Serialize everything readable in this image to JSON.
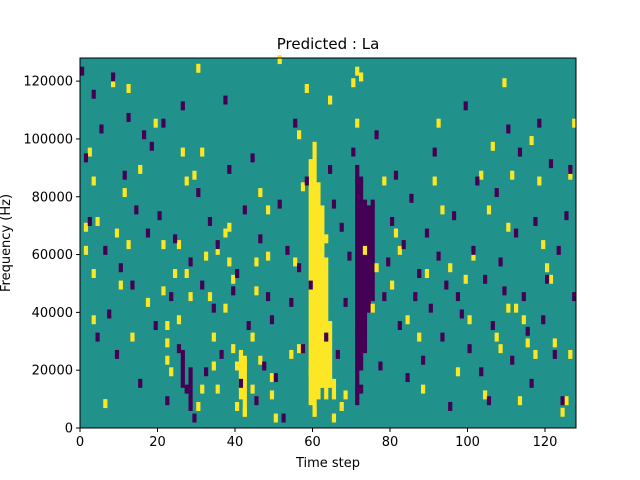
{
  "chart_data": {
    "type": "heatmap",
    "title": "Predicted : La",
    "xlabel": "Time step",
    "ylabel": "Frequency (Hz)",
    "xlim": [
      0,
      128
    ],
    "ylim": [
      0,
      128000
    ],
    "xticks": [
      0,
      20,
      40,
      60,
      80,
      100,
      120
    ],
    "yticks": [
      0,
      20000,
      40000,
      60000,
      80000,
      100000,
      120000
    ],
    "ytick_labels": [
      "0",
      "20000",
      "40000",
      "60000",
      "80000",
      "100000",
      "120000"
    ],
    "n_time_steps": 128,
    "n_freq_bins": 128,
    "bin_hz": 1000,
    "colors": {
      "background": "#21918c",
      "high": "#fde725",
      "low": "#440154"
    },
    "cells": {
      "high": [
        [
          1,
          60
        ],
        [
          1,
          68
        ],
        [
          2,
          94
        ],
        [
          3,
          84
        ],
        [
          3,
          52
        ],
        [
          3,
          36
        ],
        [
          4,
          70
        ],
        [
          6,
          7
        ],
        [
          8,
          118
        ],
        [
          9,
          66
        ],
        [
          10,
          48
        ],
        [
          11,
          80
        ],
        [
          12,
          116
        ],
        [
          12,
          62
        ],
        [
          13,
          30
        ],
        [
          15,
          88
        ],
        [
          17,
          42
        ],
        [
          19,
          104
        ],
        [
          21,
          62
        ],
        [
          21,
          46
        ],
        [
          22,
          34
        ],
        [
          22,
          28
        ],
        [
          22,
          22
        ],
        [
          23,
          18
        ],
        [
          24,
          52
        ],
        [
          25,
          62
        ],
        [
          25,
          36
        ],
        [
          26,
          94
        ],
        [
          27,
          52
        ],
        [
          27,
          84
        ],
        [
          28,
          44
        ],
        [
          29,
          86
        ],
        [
          30,
          6
        ],
        [
          30,
          123
        ],
        [
          31,
          12
        ],
        [
          31,
          94
        ],
        [
          32,
          58
        ],
        [
          33,
          44
        ],
        [
          34,
          20
        ],
        [
          34,
          30
        ],
        [
          35,
          12
        ],
        [
          35,
          60
        ],
        [
          37,
          40
        ],
        [
          37,
          66
        ],
        [
          38,
          56
        ],
        [
          38,
          68
        ],
        [
          39,
          26
        ],
        [
          39,
          50
        ],
        [
          40,
          6
        ],
        [
          40,
          20
        ],
        [
          41,
          18
        ],
        [
          41,
          24
        ],
        [
          42,
          4
        ],
        [
          42,
          20
        ],
        [
          44,
          30
        ],
        [
          44,
          12
        ],
        [
          45,
          46
        ],
        [
          45,
          56
        ],
        [
          46,
          22
        ],
        [
          46,
          80
        ],
        [
          48,
          74
        ],
        [
          48,
          58
        ],
        [
          49,
          10
        ],
        [
          49,
          16
        ],
        [
          50,
          2
        ],
        [
          51,
          126
        ],
        [
          54,
          24
        ],
        [
          55,
          56
        ],
        [
          56,
          100
        ],
        [
          56,
          26
        ],
        [
          57,
          82
        ],
        [
          58,
          116
        ],
        [
          59,
          18
        ],
        [
          60,
          4
        ],
        [
          62,
          14
        ],
        [
          63,
          64
        ],
        [
          64,
          112
        ],
        [
          65,
          2
        ],
        [
          67,
          6
        ],
        [
          68,
          10
        ],
        [
          70,
          118
        ],
        [
          71,
          122
        ],
        [
          71,
          104
        ],
        [
          72,
          120
        ],
        [
          73,
          60
        ],
        [
          75,
          40
        ],
        [
          76,
          54
        ],
        [
          78,
          84
        ],
        [
          80,
          48
        ],
        [
          81,
          66
        ],
        [
          82,
          60
        ],
        [
          84,
          36
        ],
        [
          87,
          30
        ],
        [
          88,
          12
        ],
        [
          89,
          52
        ],
        [
          91,
          84
        ],
        [
          92,
          104
        ],
        [
          93,
          74
        ],
        [
          95,
          54
        ],
        [
          97,
          18
        ],
        [
          99,
          50
        ],
        [
          100,
          36
        ],
        [
          101,
          58
        ],
        [
          103,
          86
        ],
        [
          104,
          10
        ],
        [
          105,
          74
        ],
        [
          106,
          96
        ],
        [
          107,
          30
        ],
        [
          108,
          26
        ],
        [
          109,
          118
        ],
        [
          110,
          68
        ],
        [
          110,
          40
        ],
        [
          111,
          86
        ],
        [
          112,
          40
        ],
        [
          113,
          8
        ],
        [
          114,
          36
        ],
        [
          115,
          28
        ],
        [
          116,
          98
        ],
        [
          117,
          24
        ],
        [
          118,
          84
        ],
        [
          119,
          62
        ],
        [
          120,
          54
        ],
        [
          121,
          50
        ],
        [
          122,
          28
        ],
        [
          124,
          4
        ],
        [
          125,
          8
        ],
        [
          126,
          24
        ],
        [
          126,
          86
        ],
        [
          127,
          104
        ]
      ],
      "low": [
        [
          0,
          122
        ],
        [
          1,
          92
        ],
        [
          2,
          70
        ],
        [
          3,
          114
        ],
        [
          4,
          30
        ],
        [
          5,
          102
        ],
        [
          6,
          60
        ],
        [
          7,
          38
        ],
        [
          8,
          120
        ],
        [
          9,
          24
        ],
        [
          10,
          54
        ],
        [
          11,
          86
        ],
        [
          12,
          106
        ],
        [
          13,
          48
        ],
        [
          14,
          74
        ],
        [
          15,
          14
        ],
        [
          16,
          100
        ],
        [
          17,
          66
        ],
        [
          18,
          96
        ],
        [
          19,
          34
        ],
        [
          20,
          72
        ],
        [
          21,
          104
        ],
        [
          22,
          8
        ],
        [
          23,
          44
        ],
        [
          24,
          64
        ],
        [
          25,
          26
        ],
        [
          26,
          110
        ],
        [
          27,
          12
        ],
        [
          28,
          56
        ],
        [
          29,
          2
        ],
        [
          30,
          80
        ],
        [
          31,
          48
        ],
        [
          32,
          18
        ],
        [
          33,
          70
        ],
        [
          34,
          40
        ],
        [
          35,
          62
        ],
        [
          36,
          24
        ],
        [
          37,
          112
        ],
        [
          38,
          88
        ],
        [
          39,
          46
        ],
        [
          40,
          52
        ],
        [
          41,
          14
        ],
        [
          42,
          74
        ],
        [
          43,
          34
        ],
        [
          44,
          92
        ],
        [
          45,
          8
        ],
        [
          46,
          64
        ],
        [
          47,
          20
        ],
        [
          48,
          44
        ],
        [
          49,
          36
        ],
        [
          50,
          16
        ],
        [
          51,
          76
        ],
        [
          52,
          2
        ],
        [
          53,
          60
        ],
        [
          54,
          42
        ],
        [
          55,
          104
        ],
        [
          56,
          54
        ],
        [
          57,
          26
        ],
        [
          58,
          84
        ],
        [
          59,
          48
        ],
        [
          63,
          30
        ],
        [
          64,
          88
        ],
        [
          65,
          76
        ],
        [
          66,
          24
        ],
        [
          67,
          68
        ],
        [
          68,
          42
        ],
        [
          69,
          58
        ],
        [
          70,
          94
        ],
        [
          71,
          32
        ],
        [
          72,
          12
        ],
        [
          73,
          64
        ],
        [
          74,
          46
        ],
        [
          75,
          76
        ],
        [
          76,
          100
        ],
        [
          77,
          20
        ],
        [
          78,
          44
        ],
        [
          79,
          56
        ],
        [
          80,
          70
        ],
        [
          81,
          86
        ],
        [
          82,
          34
        ],
        [
          83,
          62
        ],
        [
          84,
          16
        ],
        [
          85,
          78
        ],
        [
          86,
          44
        ],
        [
          87,
          52
        ],
        [
          88,
          22
        ],
        [
          89,
          66
        ],
        [
          90,
          40
        ],
        [
          91,
          94
        ],
        [
          92,
          58
        ],
        [
          93,
          30
        ],
        [
          94,
          48
        ],
        [
          95,
          6
        ],
        [
          96,
          72
        ],
        [
          97,
          44
        ],
        [
          98,
          38
        ],
        [
          99,
          110
        ],
        [
          100,
          26
        ],
        [
          101,
          60
        ],
        [
          102,
          84
        ],
        [
          103,
          18
        ],
        [
          104,
          50
        ],
        [
          105,
          8
        ],
        [
          106,
          34
        ],
        [
          107,
          80
        ],
        [
          108,
          56
        ],
        [
          109,
          46
        ],
        [
          110,
          102
        ],
        [
          111,
          22
        ],
        [
          112,
          66
        ],
        [
          113,
          94
        ],
        [
          114,
          44
        ],
        [
          115,
          32
        ],
        [
          116,
          14
        ],
        [
          117,
          70
        ],
        [
          118,
          104
        ],
        [
          119,
          36
        ],
        [
          120,
          50
        ],
        [
          121,
          90
        ],
        [
          122,
          24
        ],
        [
          123,
          60
        ],
        [
          124,
          8
        ],
        [
          125,
          72
        ],
        [
          126,
          88
        ],
        [
          127,
          44
        ]
      ],
      "high_ranges": [
        {
          "t": 59,
          "from": 8,
          "to": 92
        },
        {
          "t": 60,
          "from": 4,
          "to": 98
        },
        {
          "t": 61,
          "from": 10,
          "to": 84
        },
        {
          "t": 62,
          "from": 14,
          "to": 76
        },
        {
          "t": 63,
          "from": 10,
          "to": 58
        },
        {
          "t": 64,
          "from": 14,
          "to": 36
        },
        {
          "t": 65,
          "from": 10,
          "to": 16
        },
        {
          "t": 41,
          "from": 10,
          "to": 24
        },
        {
          "t": 42,
          "from": 4,
          "to": 24
        }
      ],
      "low_ranges": [
        {
          "t": 71,
          "from": 8,
          "to": 90
        },
        {
          "t": 72,
          "from": 20,
          "to": 86
        },
        {
          "t": 73,
          "from": 26,
          "to": 78
        },
        {
          "t": 74,
          "from": 40,
          "to": 76
        },
        {
          "t": 75,
          "from": 44,
          "to": 76
        },
        {
          "t": 28,
          "from": 6,
          "to": 20
        },
        {
          "t": 26,
          "from": 14,
          "to": 26
        }
      ]
    }
  }
}
